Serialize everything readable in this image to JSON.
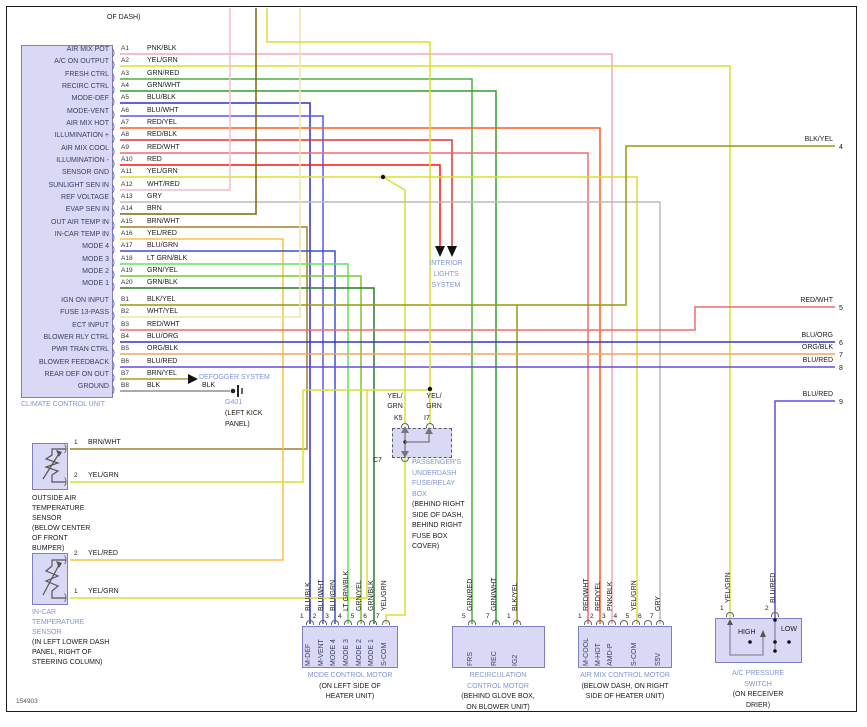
{
  "page": {
    "figure_number": "154903",
    "top_note": "OF DASH)"
  },
  "colors": {
    "PNK_BLK": "#f3a7bc",
    "YEL_GRN": "#d9e030",
    "GRN_RED": "#4caf3f",
    "GRN_WHT": "#2e9e2e",
    "BLU_BLK": "#2f2fd3",
    "BLU_WHT": "#5959e8",
    "RED_YEL": "#ff5a1e",
    "RED_BLK": "#e23333",
    "RED_WHT": "#f26b6b",
    "RED": "#ff1111",
    "WHT_RED": "#f5bcc8",
    "GRY": "#bcbcbc",
    "BRN": "#7d6608",
    "BRN_WHT": "#a3812c",
    "YEL_RED": "#f7c143",
    "BLU_GRN": "#3b4fd8",
    "LT_GRN_BLK": "#63e063",
    "GRN_YEL": "#7ac832",
    "GRN_BLK": "#2b7a2b",
    "BLK_YEL": "#99990f",
    "WHT_YEL": "#eee8a6",
    "BLU_ORG": "#3333cc",
    "ORG_BLK": "#f0a553",
    "BLU_RED": "#6a48e0",
    "BRN_YEL": "#ad9b27",
    "BLK": "#8f8f8f"
  },
  "climate_unit": {
    "name": "CLIMATE CONTROL UNIT",
    "pins_a": [
      {
        "id": "A1",
        "label": "AIR MIX POT",
        "wire": "PNK/BLK",
        "color": "PNK_BLK"
      },
      {
        "id": "A2",
        "label": "A/C ON OUTPUT",
        "wire": "YEL/GRN",
        "color": "YEL_GRN"
      },
      {
        "id": "A3",
        "label": "FRESH CTRL",
        "wire": "GRN/RED",
        "color": "GRN_RED"
      },
      {
        "id": "A4",
        "label": "RECIRC CTRL",
        "wire": "GRN/WHT",
        "color": "GRN_WHT"
      },
      {
        "id": "A5",
        "label": "MODE-DEF",
        "wire": "BLU/BLK",
        "color": "BLU_BLK"
      },
      {
        "id": "A6",
        "label": "MODE-VENT",
        "wire": "BLU/WHT",
        "color": "BLU_WHT"
      },
      {
        "id": "A7",
        "label": "AIR MIX HOT",
        "wire": "RED/YEL",
        "color": "RED_YEL"
      },
      {
        "id": "A8",
        "label": "ILLUMINATION +",
        "wire": "RED/BLK",
        "color": "RED_BLK"
      },
      {
        "id": "A9",
        "label": "AIR MIX COOL",
        "wire": "RED/WHT",
        "color": "RED_WHT"
      },
      {
        "id": "A10",
        "label": "ILLUMINATION -",
        "wire": "RED",
        "color": "RED"
      },
      {
        "id": "A11",
        "label": "SENSOR GND",
        "wire": "YEL/GRN",
        "color": "YEL_GRN"
      },
      {
        "id": "A12",
        "label": "SUNLIGHT SEN IN",
        "wire": "WHT/RED",
        "color": "WHT_RED"
      },
      {
        "id": "A13",
        "label": "REF VOLTAGE",
        "wire": "GRY",
        "color": "GRY"
      },
      {
        "id": "A14",
        "label": "EVAP SEN IN",
        "wire": "BRN",
        "color": "BRN"
      },
      {
        "id": "A15",
        "label": "OUT AIR TEMP IN",
        "wire": "BRN/WHT",
        "color": "BRN_WHT"
      },
      {
        "id": "A16",
        "label": "IN-CAR TEMP IN",
        "wire": "YEL/RED",
        "color": "YEL_RED"
      },
      {
        "id": "A17",
        "label": "MODE 4",
        "wire": "BLU/GRN",
        "color": "BLU_GRN"
      },
      {
        "id": "A18",
        "label": "MODE 3",
        "wire": "LT GRN/BLK",
        "color": "LT_GRN_BLK"
      },
      {
        "id": "A19",
        "label": "MODE 2",
        "wire": "GRN/YEL",
        "color": "GRN_YEL"
      },
      {
        "id": "A20",
        "label": "MODE 1",
        "wire": "GRN/BLK",
        "color": "GRN_BLK"
      }
    ],
    "pins_b": [
      {
        "id": "B1",
        "label": "IGN ON INPUT",
        "wire": "BLK/YEL",
        "color": "BLK_YEL"
      },
      {
        "id": "B2",
        "label": "FUSE 13-PASS",
        "wire": "WHT/YEL",
        "color": "WHT_YEL"
      },
      {
        "id": "B3",
        "label": "ECT INPUT",
        "wire": "RED/WHT",
        "color": "RED_WHT"
      },
      {
        "id": "B4",
        "label": "BLOWER RLY CTRL",
        "wire": "BLU/ORG",
        "color": "BLU_ORG"
      },
      {
        "id": "B5",
        "label": "PWR TRAN CTRL",
        "wire": "ORG/BLK",
        "color": "ORG_BLK"
      },
      {
        "id": "B6",
        "label": "BLOWER FEEDBACK",
        "wire": "BLU/RED",
        "color": "BLU_RED"
      },
      {
        "id": "B7",
        "label": "REAR DEF ON OUT",
        "wire": "BRN/YEL",
        "color": "BRN_YEL"
      },
      {
        "id": "B8",
        "label": "GROUND",
        "wire": "BLK",
        "color": "BLK"
      }
    ]
  },
  "right_stubs": [
    {
      "num": "4",
      "wire": "BLK/YEL"
    },
    {
      "num": "5",
      "wire": "RED/WHT"
    },
    {
      "num": "6",
      "wire": "BLU/ORG"
    },
    {
      "num": "7",
      "wire": "ORG/BLK"
    },
    {
      "num": "8",
      "wire": "BLU/RED"
    },
    {
      "num": "9",
      "wire": "BLU/RED"
    }
  ],
  "interior_lights": {
    "lines": [
      "INTERIOR",
      "LIGHTS",
      "SYSTEM"
    ]
  },
  "defogger": {
    "label": "DEFOGGER SYSTEM",
    "wire_label": "BLK"
  },
  "ground_point": {
    "id": "G401",
    "location_lines": [
      "(LEFT KICK",
      "PANEL)"
    ]
  },
  "fuse_box": {
    "name_lines": [
      "PASSENGER'S",
      "UNDERDASH",
      "FUSE/RELAY",
      "BOX"
    ],
    "location_lines": [
      "(BEHIND RIGHT",
      "SIDE OF DASH,",
      "BEHIND RIGHT",
      "FUSE BOX",
      "COVER)"
    ],
    "pin_top_left": "K5",
    "pin_top_right": "I7",
    "pin_bottom": "C7",
    "wire_label_left": [
      "YEL/",
      "GRN"
    ],
    "wire_label_right": [
      "YEL/",
      "GRN"
    ]
  },
  "outside_sensor": {
    "name_lines": [
      "OUTSIDE AIR",
      "TEMPERATURE",
      "SENSOR"
    ],
    "location_lines": [
      "(BELOW CENTER",
      "OF FRONT",
      "BUMPER)"
    ],
    "name_blue": false,
    "pins": [
      {
        "num": "1",
        "wire": "BRN/WHT"
      },
      {
        "num": "2",
        "wire": "YEL/GRN"
      }
    ]
  },
  "incar_sensor": {
    "name_lines": [
      "IN-CAR",
      "TEMPERATURE",
      "SENSOR"
    ],
    "location_lines": [
      "(IN LEFT LOWER DASH",
      "PANEL, RIGHT OF",
      "STEERING COLUMN)"
    ],
    "name_blue": true,
    "pins": [
      {
        "num": "2",
        "wire": "YEL/RED"
      },
      {
        "num": "1",
        "wire": "YEL/GRN"
      }
    ]
  },
  "mode_motor": {
    "name_lines": [
      "MODE CONTROL MOTOR"
    ],
    "location_lines": [
      "(ON LEFT SIDE OF",
      "HEATER UNIT)"
    ],
    "pins": [
      {
        "num": "1",
        "wire": "BLU/BLK",
        "name": "M-DEF"
      },
      {
        "num": "2",
        "wire": "BLU/WHT",
        "name": "M-VENT"
      },
      {
        "num": "3",
        "wire": "BLU/GRN",
        "name": "MODE 4"
      },
      {
        "num": "4",
        "wire": "LT GRN/BLK",
        "name": "MODE 3"
      },
      {
        "num": "5",
        "wire": "GRN/YEL",
        "name": "MODE 2"
      },
      {
        "num": "6",
        "wire": "GRN/BLK",
        "name": "MODE 1"
      },
      {
        "num": "7",
        "wire": "YEL/GRN",
        "name": "S-COM"
      }
    ]
  },
  "recirc_motor": {
    "name_lines": [
      "RECIRCULATION",
      "CONTROL MOTOR"
    ],
    "location_lines": [
      "(BEHIND GLOVE BOX,",
      "ON BLOWER UNIT)"
    ],
    "pins": [
      {
        "num": "5",
        "wire": "GRN/RED",
        "name": "FRS"
      },
      {
        "num": "7",
        "wire": "GRN/WHT",
        "name": "REC"
      },
      {
        "num": "1",
        "wire": "BLK/YEL",
        "name": "IG2"
      }
    ]
  },
  "airmix_motor": {
    "name_lines": [
      "AIR MIX CONTROL MOTOR"
    ],
    "location_lines": [
      "(BELOW DASH, ON RIGHT",
      "SIDE OF HEATER UNIT)"
    ],
    "pins": [
      {
        "num": "1",
        "wire": "RED/WHT",
        "name": "M-COOL"
      },
      {
        "num": "2",
        "wire": "RED/YEL",
        "name": "M-HOT"
      },
      {
        "num": "3",
        "wire": "PNK/BLK",
        "name": "AMD-P"
      },
      {
        "num": "4",
        "wire": "",
        "name": ""
      },
      {
        "num": "5",
        "wire": "YEL/GRN",
        "name": "S-COM"
      },
      {
        "num": "6",
        "wire": "",
        "name": ""
      },
      {
        "num": "7",
        "wire": "GRY",
        "name": "S5V"
      }
    ]
  },
  "ac_switch": {
    "name_lines": [
      "A/C PRESSURE",
      "SWITCH"
    ],
    "location_lines": [
      "(ON RECEIVER",
      "DRIER)"
    ],
    "high_label": "HIGH",
    "low_label": "LOW",
    "pins": [
      {
        "num": "1",
        "wire": "YEL/GRN"
      },
      {
        "num": "2",
        "wire": "BLU/RED"
      }
    ]
  }
}
